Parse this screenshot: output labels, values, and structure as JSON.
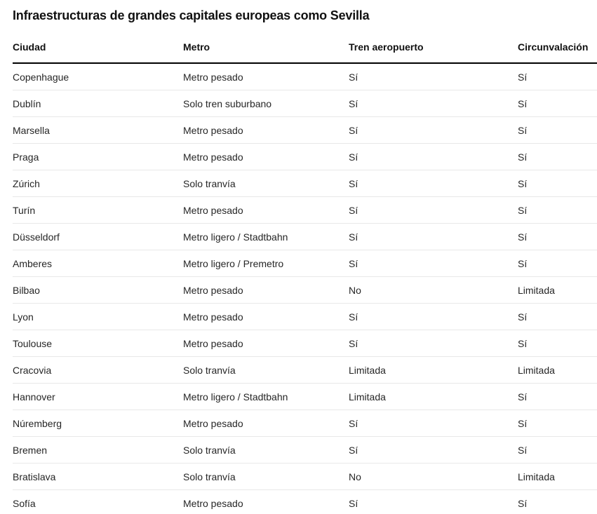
{
  "title": "Infraestructuras de grandes capitales europeas como Sevilla",
  "colors": {
    "background": "#FFFFFF",
    "title_text": "#111111",
    "header_text": "#111111",
    "city_text": "#262626",
    "positive": "#0DA086",
    "negative": "#D5332F",
    "partial": "#F99C27",
    "header_rule": "#000000",
    "row_divider": "#E8E8E8"
  },
  "chart_data": {
    "type": "table",
    "title": "Infraestructuras de grandes capitales europeas como Sevilla",
    "columns": [
      "Ciudad",
      "Metro",
      "Tren aeropuerto",
      "Circunvalación"
    ],
    "rows": [
      {
        "cells": [
          {
            "text": "Copenhague",
            "color": "city"
          },
          {
            "text": "Metro pesado",
            "color": "positive"
          },
          {
            "text": "Sí",
            "color": "positive"
          },
          {
            "text": "Sí",
            "color": "positive"
          }
        ]
      },
      {
        "cells": [
          {
            "text": "Dublín",
            "color": "city"
          },
          {
            "text": "Solo tren suburbano",
            "color": "negative"
          },
          {
            "text": "Sí",
            "color": "positive"
          },
          {
            "text": "Sí",
            "color": "positive"
          }
        ]
      },
      {
        "cells": [
          {
            "text": "Marsella",
            "color": "city"
          },
          {
            "text": "Metro pesado",
            "color": "positive"
          },
          {
            "text": "Sí",
            "color": "positive"
          },
          {
            "text": "Sí",
            "color": "positive"
          }
        ]
      },
      {
        "cells": [
          {
            "text": "Praga",
            "color": "city"
          },
          {
            "text": "Metro pesado",
            "color": "positive"
          },
          {
            "text": "Sí",
            "color": "positive"
          },
          {
            "text": "Sí",
            "color": "positive"
          }
        ]
      },
      {
        "cells": [
          {
            "text": "Zúrich",
            "color": "city"
          },
          {
            "text": "Solo tranvía",
            "color": "negative"
          },
          {
            "text": "Sí",
            "color": "positive"
          },
          {
            "text": "Sí",
            "color": "positive"
          }
        ]
      },
      {
        "cells": [
          {
            "text": "Turín",
            "color": "city"
          },
          {
            "text": "Metro pesado",
            "color": "positive"
          },
          {
            "text": "Sí",
            "color": "positive"
          },
          {
            "text": "Sí",
            "color": "positive"
          }
        ]
      },
      {
        "cells": [
          {
            "text": "Düsseldorf",
            "color": "city"
          },
          {
            "text": "Metro ligero / Stadtbahn",
            "color": "partial"
          },
          {
            "text": "Sí",
            "color": "positive"
          },
          {
            "text": "Sí",
            "color": "positive"
          }
        ]
      },
      {
        "cells": [
          {
            "text": "Amberes",
            "color": "city"
          },
          {
            "text": "Metro ligero / Premetro",
            "color": "partial"
          },
          {
            "text": "Sí",
            "color": "positive"
          },
          {
            "text": "Sí",
            "color": "positive"
          }
        ]
      },
      {
        "cells": [
          {
            "text": "Bilbao",
            "color": "city"
          },
          {
            "text": "Metro pesado",
            "color": "positive"
          },
          {
            "text": "No",
            "color": "negative"
          },
          {
            "text": "Limitada",
            "color": "partial"
          }
        ]
      },
      {
        "cells": [
          {
            "text": "Lyon",
            "color": "city"
          },
          {
            "text": "Metro pesado",
            "color": "positive"
          },
          {
            "text": "Sí",
            "color": "positive"
          },
          {
            "text": "Sí",
            "color": "positive"
          }
        ]
      },
      {
        "cells": [
          {
            "text": "Toulouse",
            "color": "city"
          },
          {
            "text": "Metro pesado",
            "color": "positive"
          },
          {
            "text": "Sí",
            "color": "positive"
          },
          {
            "text": "Sí",
            "color": "positive"
          }
        ]
      },
      {
        "cells": [
          {
            "text": "Cracovia",
            "color": "city"
          },
          {
            "text": "Solo tranvía",
            "color": "negative"
          },
          {
            "text": "Limitada",
            "color": "partial"
          },
          {
            "text": "Limitada",
            "color": "partial"
          }
        ]
      },
      {
        "cells": [
          {
            "text": "Hannover",
            "color": "city"
          },
          {
            "text": "Metro ligero / Stadtbahn",
            "color": "partial"
          },
          {
            "text": "Limitada",
            "color": "partial"
          },
          {
            "text": "Sí",
            "color": "positive"
          }
        ]
      },
      {
        "cells": [
          {
            "text": "Núremberg",
            "color": "city"
          },
          {
            "text": "Metro pesado",
            "color": "positive"
          },
          {
            "text": "Sí",
            "color": "positive"
          },
          {
            "text": "Sí",
            "color": "positive"
          }
        ]
      },
      {
        "cells": [
          {
            "text": "Bremen",
            "color": "city"
          },
          {
            "text": "Solo tranvía",
            "color": "negative"
          },
          {
            "text": "Sí",
            "color": "positive"
          },
          {
            "text": "Sí",
            "color": "positive"
          }
        ]
      },
      {
        "cells": [
          {
            "text": "Bratislava",
            "color": "city"
          },
          {
            "text": "Solo tranvía",
            "color": "negative"
          },
          {
            "text": "No",
            "color": "negative"
          },
          {
            "text": "Limitada",
            "color": "partial"
          }
        ]
      },
      {
        "cells": [
          {
            "text": "Sofía",
            "color": "city"
          },
          {
            "text": "Metro pesado",
            "color": "positive"
          },
          {
            "text": "Sí",
            "color": "positive"
          },
          {
            "text": "Sí",
            "color": "positive"
          }
        ]
      }
    ]
  }
}
